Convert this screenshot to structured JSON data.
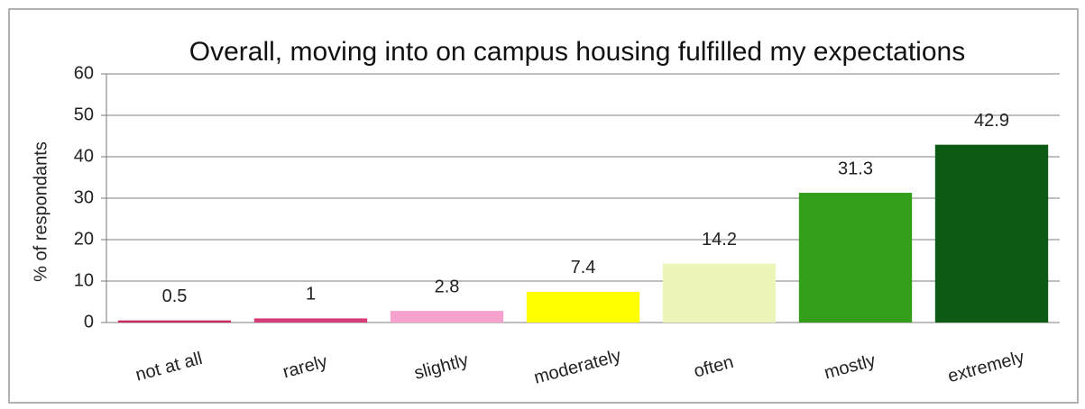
{
  "chart_data": {
    "type": "bar",
    "title": "Overall, moving into on campus housing fulfilled my expectations",
    "y_label": "% of respondants",
    "categories": [
      "not at all",
      "rarely",
      "slightly",
      "moderately",
      "often",
      "mostly",
      "extremely"
    ],
    "values": [
      0.5,
      1,
      2.8,
      7.4,
      14.2,
      31.3,
      42.9
    ],
    "colors": [
      "#c8285a",
      "#d63c78",
      "#f7a1cf",
      "#ffff00",
      "#eef5b8",
      "#339e1a",
      "#0c5a14"
    ],
    "ylim": [
      0,
      60
    ],
    "yticks": [
      0,
      10,
      20,
      30,
      40,
      50,
      60
    ],
    "grid": true
  }
}
